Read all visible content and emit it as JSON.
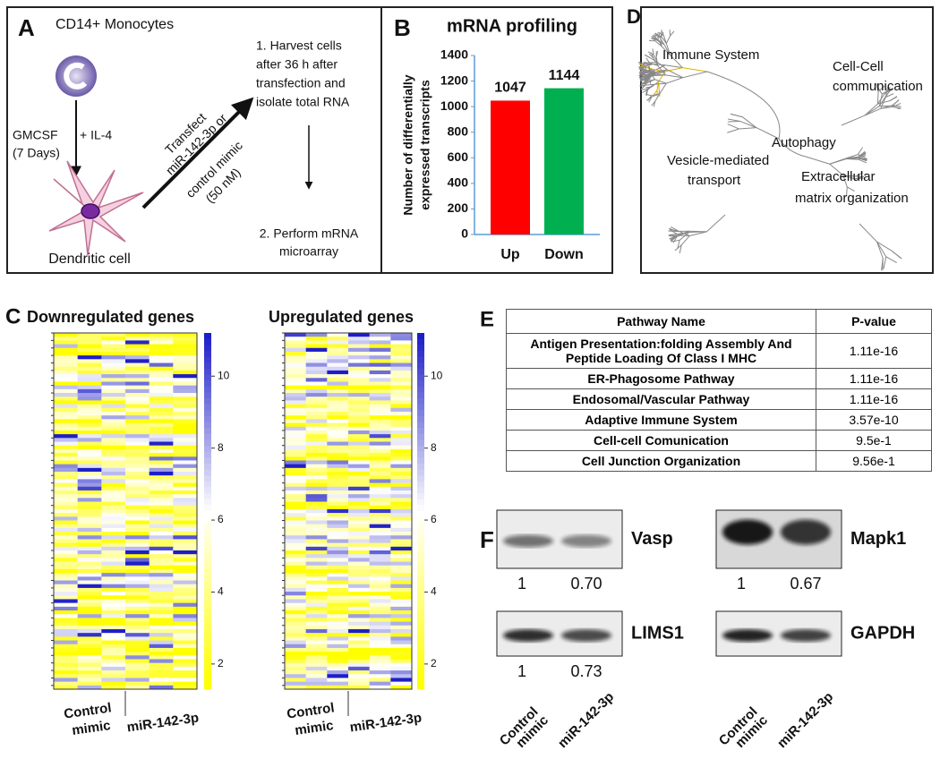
{
  "panel_a": {
    "label": "A",
    "title": "CD14+ Monocytes",
    "treatment": "GMCSF",
    "treatment_add": "+ IL-4",
    "duration": "(7 Days)",
    "cell": "Dendritic cell",
    "transfect": [
      "Transfect",
      "miR-142-3p  or"
    ],
    "control": [
      "control mimic",
      "(50 nM)"
    ],
    "step1": [
      "1.  Harvest   cells",
      "after  36  h  after",
      "transfection    and",
      "isolate total RNA"
    ],
    "step2": [
      "2.  Perform  mRNA",
      "microarray"
    ]
  },
  "panel_b": {
    "label": "B",
    "chart_data": {
      "type": "bar",
      "title": "mRNA  profiling",
      "y_label": [
        "Number of differentially",
        "expressed transcripts"
      ],
      "categories": [
        "Up",
        "Down"
      ],
      "values": [
        1047,
        1144
      ],
      "colors": [
        "#ff0000",
        "#00b050"
      ],
      "ylim": [
        0,
        1400
      ],
      "yticks": [
        0,
        200,
        400,
        600,
        800,
        1000,
        1200,
        1400
      ]
    }
  },
  "panel_c": {
    "label": "C",
    "heatmaps": [
      {
        "title": "Downregulated genes",
        "x_labels": [
          "Control",
          "mimic",
          "miR-142-3p"
        ],
        "colorbar_ticks": [
          2,
          4,
          6,
          8,
          10
        ],
        "colorbar_lim": [
          1.3,
          11.2
        ]
      },
      {
        "title": "Upregulated genes",
        "x_labels": [
          "Control",
          "mimic",
          "miR-142-3p"
        ],
        "colorbar_ticks": [
          2,
          4,
          6,
          8,
          10
        ],
        "colorbar_lim": [
          1.3,
          11.2
        ]
      }
    ]
  },
  "panel_d": {
    "label": "D",
    "nodes": [
      "Immune System",
      "Cell-Cell",
      "communication",
      "Autophagy",
      "Vesicle-mediated",
      "transport",
      "Extracellular",
      "matrix organization"
    ]
  },
  "panel_e": {
    "label": "E",
    "table": {
      "header": [
        "Pathway Name",
        "P-value"
      ],
      "rows": [
        [
          "Antigen Presentation:folding Assembly And Peptide Loading Of Class I MHC",
          "1.11e-16"
        ],
        [
          "ER-Phagosome Pathway",
          "1.11e-16"
        ],
        [
          "Endosomal/Vascular Pathway",
          "1.11e-16"
        ],
        [
          "Adaptive Immune System",
          "3.57e-10"
        ],
        [
          "Cell-cell Comunication",
          "9.5e-1"
        ],
        [
          "Cell Junction Organization",
          "9.56e-1"
        ]
      ]
    }
  },
  "panel_f": {
    "label": "F",
    "blots": [
      {
        "name": "Vasp",
        "ratios": [
          "1",
          "0.70"
        ]
      },
      {
        "name": "Mapk1",
        "ratios": [
          "1",
          "0.67"
        ]
      },
      {
        "name": "LIMS1",
        "ratios": [
          "1",
          "0.73"
        ]
      },
      {
        "name": "GAPDH"
      }
    ],
    "x_labels": [
      [
        "Control",
        "mimic",
        "miR-142-3p"
      ],
      [
        "Control",
        "mimic",
        "miR-142-3p"
      ]
    ]
  }
}
